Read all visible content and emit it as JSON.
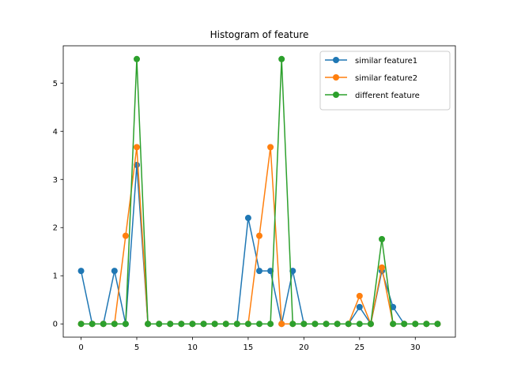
{
  "chart_data": {
    "type": "line",
    "title": "Histogram of feature",
    "xlabel": "",
    "ylabel": "",
    "xlim": [
      -1.6,
      33.6
    ],
    "ylim": [
      -0.275,
      5.775
    ],
    "xticks": [
      0,
      5,
      10,
      15,
      20,
      25,
      30
    ],
    "yticks": [
      0,
      1,
      2,
      3,
      4,
      5
    ],
    "grid": false,
    "legend_position": "top-right",
    "x": [
      0,
      1,
      2,
      3,
      4,
      5,
      6,
      7,
      8,
      9,
      10,
      11,
      12,
      13,
      14,
      15,
      16,
      17,
      18,
      19,
      20,
      21,
      22,
      23,
      24,
      25,
      26,
      27,
      28,
      29,
      30,
      31,
      32
    ],
    "series": [
      {
        "name": "similar feature1",
        "color": "#1f77b4",
        "values": [
          1.1,
          0,
          0,
          1.1,
          0,
          3.3,
          0,
          0,
          0,
          0,
          0,
          0,
          0,
          0,
          0,
          2.2,
          1.1,
          1.1,
          0,
          1.1,
          0,
          0,
          0,
          0,
          0,
          0.35,
          0,
          1.1,
          0.35,
          0,
          0,
          0,
          0
        ]
      },
      {
        "name": "similar feature2",
        "color": "#ff7f0e",
        "values": [
          0,
          0,
          0,
          0,
          1.83,
          3.67,
          0,
          0,
          0,
          0,
          0,
          0,
          0,
          0,
          0,
          0,
          1.83,
          3.67,
          0,
          0,
          0,
          0,
          0,
          0,
          0,
          0.58,
          0,
          1.17,
          0,
          0,
          0,
          0,
          0
        ]
      },
      {
        "name": "different feature",
        "color": "#2ca02c",
        "values": [
          0,
          0,
          0,
          0,
          0,
          5.5,
          0,
          0,
          0,
          0,
          0,
          0,
          0,
          0,
          0,
          0,
          0,
          0,
          5.5,
          0,
          0,
          0,
          0,
          0,
          0,
          0,
          0,
          1.76,
          0,
          0,
          0,
          0,
          0
        ]
      }
    ]
  }
}
